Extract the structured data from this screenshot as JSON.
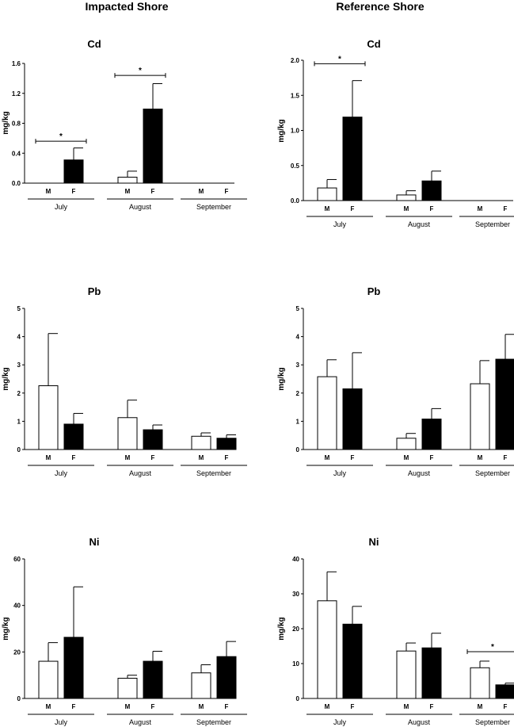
{
  "column_titles": [
    "Impacted Shore",
    "Reference Shore"
  ],
  "chart_data": [
    {
      "type": "bar",
      "title": "Cd",
      "ylabel": "mg/kg",
      "ylim": [
        0,
        1.6
      ],
      "yticks": [
        "0.0",
        "0.4",
        "0.8",
        "1.2",
        "1.6"
      ],
      "categories": [
        "July",
        "August",
        "September"
      ],
      "sex_labels": [
        "M",
        "F"
      ],
      "series": [
        {
          "values": [
            0,
            0.08,
            0
          ],
          "errors": [
            0,
            0.08,
            0
          ],
          "fill": "#ffffff"
        },
        {
          "values": [
            0.31,
            0.99,
            0
          ],
          "errors": [
            0.16,
            0.34,
            0
          ],
          "fill": "#000000"
        }
      ],
      "significance": [
        {
          "category": 0,
          "label": "*",
          "level": 0.56
        },
        {
          "category": 1,
          "label": "*",
          "level": 1.44
        }
      ]
    },
    {
      "type": "bar",
      "title": "Cd",
      "ylabel": "mg/kg",
      "ylim": [
        0,
        2.0
      ],
      "yticks": [
        "0.0",
        "0.5",
        "1.0",
        "1.5",
        "2.0"
      ],
      "categories": [
        "July",
        "August",
        "September"
      ],
      "sex_labels": [
        "M",
        "F"
      ],
      "series": [
        {
          "values": [
            0.18,
            0.08,
            0
          ],
          "errors": [
            0.12,
            0.06,
            0
          ],
          "fill": "#ffffff"
        },
        {
          "values": [
            1.19,
            0.28,
            0
          ],
          "errors": [
            0.52,
            0.14,
            0
          ],
          "fill": "#000000"
        }
      ],
      "significance": [
        {
          "category": 0,
          "label": "*",
          "level": 1.95
        }
      ]
    },
    {
      "type": "bar",
      "title": "Pb",
      "ylabel": "mg/kg",
      "ylim": [
        0,
        5
      ],
      "yticks": [
        "0",
        "1",
        "2",
        "3",
        "4",
        "5"
      ],
      "categories": [
        "July",
        "August",
        "September"
      ],
      "sex_labels": [
        "M",
        "F"
      ],
      "series": [
        {
          "values": [
            2.26,
            1.13,
            0.47
          ],
          "errors": [
            1.85,
            0.62,
            0.12
          ],
          "fill": "#ffffff"
        },
        {
          "values": [
            0.9,
            0.7,
            0.4
          ],
          "errors": [
            0.38,
            0.17,
            0.12
          ],
          "fill": "#000000"
        }
      ],
      "significance": []
    },
    {
      "type": "bar",
      "title": "Pb",
      "ylabel": "mg/kg",
      "ylim": [
        0,
        5
      ],
      "yticks": [
        "0",
        "1",
        "2",
        "3",
        "4",
        "5"
      ],
      "categories": [
        "July",
        "August",
        "September"
      ],
      "sex_labels": [
        "M",
        "F"
      ],
      "series": [
        {
          "values": [
            2.58,
            0.4,
            2.33
          ],
          "errors": [
            0.6,
            0.17,
            0.82
          ],
          "fill": "#ffffff"
        },
        {
          "values": [
            2.15,
            1.08,
            3.2
          ],
          "errors": [
            1.28,
            0.37,
            0.88
          ],
          "fill": "#000000"
        }
      ],
      "significance": []
    },
    {
      "type": "bar",
      "title": "Ni",
      "ylabel": "mg/kg",
      "ylim": [
        0,
        60
      ],
      "yticks": [
        "0",
        "20",
        "40",
        "60"
      ],
      "categories": [
        "July",
        "August",
        "September"
      ],
      "sex_labels": [
        "M",
        "F"
      ],
      "series": [
        {
          "values": [
            16,
            8.7,
            11
          ],
          "errors": [
            8,
            1.3,
            3.5
          ],
          "fill": "#ffffff"
        },
        {
          "values": [
            26.3,
            16,
            18
          ],
          "errors": [
            21.7,
            4.3,
            6.5
          ],
          "fill": "#000000"
        }
      ],
      "significance": []
    },
    {
      "type": "bar",
      "title": "Ni",
      "ylabel": "mg/kg",
      "ylim": [
        0,
        40
      ],
      "yticks": [
        "0",
        "10",
        "20",
        "30",
        "40"
      ],
      "categories": [
        "July",
        "August",
        "September"
      ],
      "sex_labels": [
        "M",
        "F"
      ],
      "series": [
        {
          "values": [
            28,
            13.6,
            8.8
          ],
          "errors": [
            8.3,
            2.3,
            1.9
          ],
          "fill": "#ffffff"
        },
        {
          "values": [
            21.3,
            14.5,
            3.9
          ],
          "errors": [
            5.1,
            4.2,
            0.5
          ],
          "fill": "#000000"
        }
      ],
      "significance": [
        {
          "category": 2,
          "label": "*",
          "level": 13.4
        }
      ]
    }
  ]
}
